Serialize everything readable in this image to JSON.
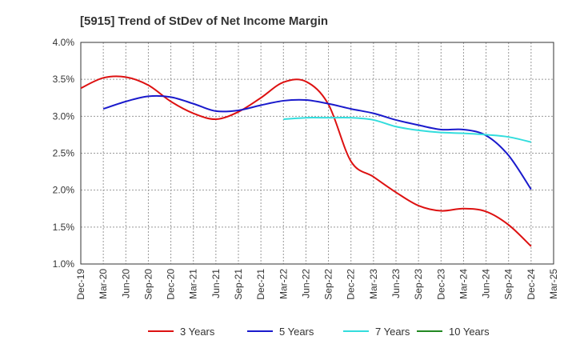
{
  "chart_data": {
    "type": "line",
    "title": "[5915]  Trend of StDev of Net Income Margin",
    "xlabel": "",
    "ylabel": "",
    "ylim": [
      1.0,
      4.0
    ],
    "y_ticks": [
      "1.0%",
      "1.5%",
      "2.0%",
      "2.5%",
      "3.0%",
      "3.5%",
      "4.0%"
    ],
    "y_tick_values": [
      1.0,
      1.5,
      2.0,
      2.5,
      3.0,
      3.5,
      4.0
    ],
    "x_categories": [
      "Dec-19",
      "Mar-20",
      "Jun-20",
      "Sep-20",
      "Dec-20",
      "Mar-21",
      "Jun-21",
      "Sep-21",
      "Dec-21",
      "Mar-22",
      "Jun-22",
      "Sep-22",
      "Dec-22",
      "Mar-23",
      "Jun-23",
      "Sep-23",
      "Dec-23",
      "Mar-24",
      "Jun-24",
      "Sep-24",
      "Dec-24",
      "Mar-25"
    ],
    "grid": true,
    "legend_position": "bottom",
    "series": [
      {
        "name": "3 Years",
        "color": "#dd1111",
        "x": [
          "Dec-19",
          "Mar-20",
          "Jun-20",
          "Sep-20",
          "Dec-20",
          "Mar-21",
          "Jun-21",
          "Sep-21",
          "Dec-21",
          "Mar-22",
          "Jun-22",
          "Sep-22",
          "Dec-22",
          "Mar-23",
          "Jun-23",
          "Sep-23",
          "Dec-23",
          "Mar-24",
          "Jun-24",
          "Sep-24",
          "Dec-24"
        ],
        "values": [
          3.38,
          3.52,
          3.53,
          3.42,
          3.2,
          3.04,
          2.96,
          3.06,
          3.25,
          3.46,
          3.47,
          3.16,
          2.39,
          2.18,
          1.97,
          1.79,
          1.72,
          1.75,
          1.71,
          1.53,
          1.24
        ]
      },
      {
        "name": "5 Years",
        "color": "#1a1acc",
        "x": [
          "Mar-20",
          "Jun-20",
          "Sep-20",
          "Dec-20",
          "Mar-21",
          "Jun-21",
          "Sep-21",
          "Dec-21",
          "Mar-22",
          "Jun-22",
          "Sep-22",
          "Dec-22",
          "Mar-23",
          "Jun-23",
          "Sep-23",
          "Dec-23",
          "Mar-24",
          "Jun-24",
          "Sep-24",
          "Dec-24"
        ],
        "values": [
          3.1,
          3.2,
          3.27,
          3.26,
          3.17,
          3.07,
          3.08,
          3.15,
          3.21,
          3.22,
          3.17,
          3.1,
          3.04,
          2.95,
          2.88,
          2.82,
          2.82,
          2.74,
          2.47,
          2.01
        ]
      },
      {
        "name": "7 Years",
        "color": "#33dddd",
        "x": [
          "Mar-22",
          "Jun-22",
          "Sep-22",
          "Dec-22",
          "Mar-23",
          "Jun-23",
          "Sep-23",
          "Dec-23",
          "Mar-24",
          "Jun-24",
          "Sep-24",
          "Dec-24"
        ],
        "values": [
          2.96,
          2.98,
          2.98,
          2.98,
          2.95,
          2.86,
          2.81,
          2.78,
          2.77,
          2.75,
          2.72,
          2.65
        ]
      },
      {
        "name": "10 Years",
        "color": "#228822",
        "x": [],
        "values": []
      }
    ]
  }
}
